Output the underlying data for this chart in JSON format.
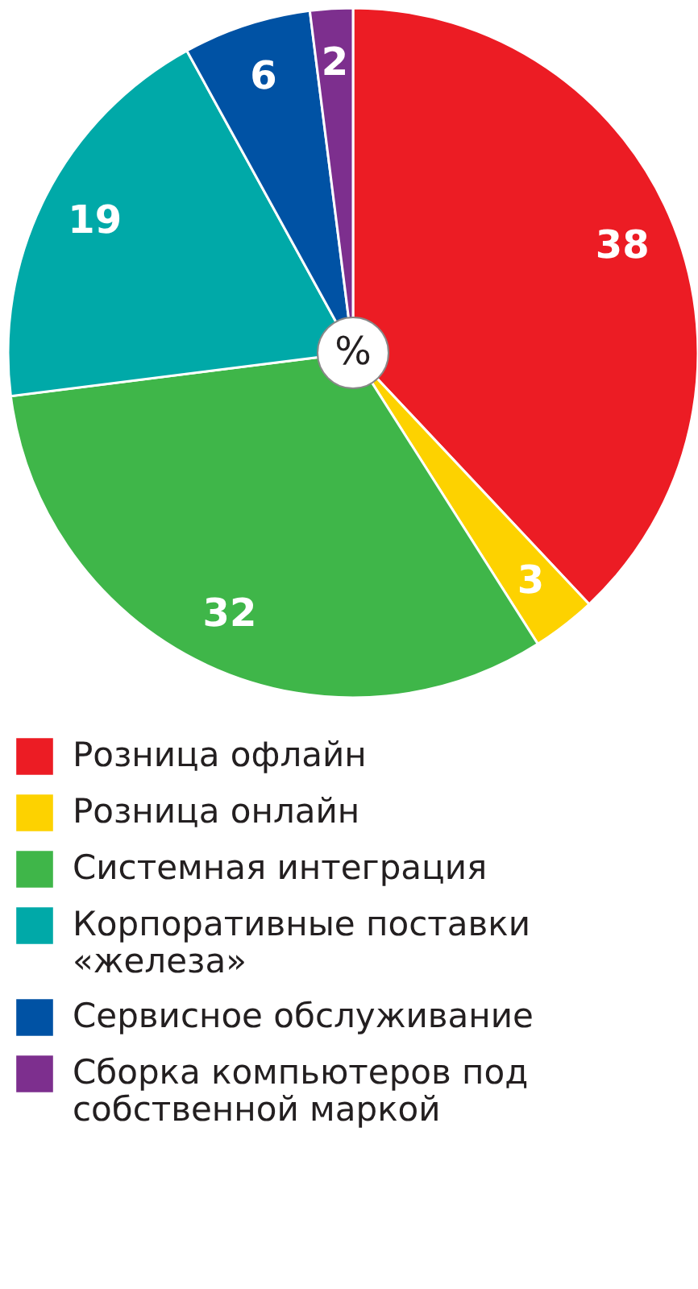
{
  "chart_data": {
    "type": "pie",
    "categories": [
      "Розница офлайн",
      "Розница онлайн",
      "Системная интеграция",
      "Корпоративные поставки «железа»",
      "Сервисное обслуживание",
      "Сборка компьютеров под собственной маркой"
    ],
    "values": [
      38,
      3,
      32,
      19,
      6,
      2
    ],
    "colors": [
      "#ec1c24",
      "#fdd200",
      "#3fb649",
      "#00a9a8",
      "#0052a4",
      "#7d2f8e"
    ],
    "data_labels": true,
    "legend": "bottom",
    "annotations": [
      "%"
    ]
  }
}
